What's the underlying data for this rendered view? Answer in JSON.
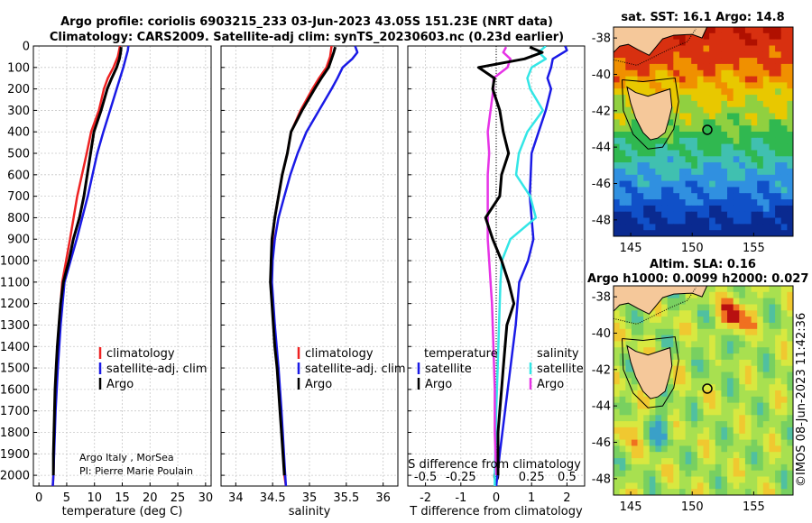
{
  "header": {
    "line1": "Argo profile: coriolis 6903215_233 03-Jun-2023 43.05S 151.23E (NRT data)",
    "line2": "Climatology: CARS2009. Satellite-adj clim: synTS_20230603.nc (0.23d earlier)"
  },
  "credit": {
    "operator": "Argo Italy , MorSea",
    "pi": "PI: Pierre Marie Poulain",
    "stamp": "©IMOS 08-Jun-2023 11:42:36"
  },
  "colors": {
    "climatology": "#ee2222",
    "satellite": "#1a1ae6",
    "argo": "#000000",
    "sat_salinity": "#33e6e6",
    "argo_salinity": "#e633e6",
    "land": "#f5c89a"
  },
  "chart_data": [
    {
      "type": "line",
      "id": "temperature_profile",
      "xlabel": "temperature (deg C)",
      "xlim": [
        -1,
        31
      ],
      "xticks": [
        0,
        5,
        10,
        15,
        20,
        25,
        30
      ],
      "ylim": [
        2050,
        0
      ],
      "yticks": [
        0,
        100,
        200,
        300,
        400,
        500,
        600,
        700,
        800,
        900,
        1000,
        1100,
        1200,
        1300,
        1400,
        1500,
        1600,
        1700,
        1800,
        1900,
        2000
      ],
      "legend": [
        "climatology",
        "satellite-adj. clim",
        "Argo"
      ],
      "series": [
        {
          "name": "climatology",
          "color": "#ee2222",
          "y": [
            0,
            50,
            100,
            150,
            200,
            300,
            400,
            500,
            700,
            900,
            1100,
            1300,
            1500,
            1700,
            2000,
            2050
          ],
          "x": [
            14.6,
            14.2,
            13.4,
            12.4,
            11.7,
            10.8,
            9.4,
            8.6,
            6.9,
            5.6,
            4.2,
            3.6,
            3.2,
            2.9,
            2.6,
            2.5
          ]
        },
        {
          "name": "satellite-adj. clim",
          "color": "#1a1ae6",
          "y": [
            0,
            20,
            60,
            100,
            150,
            200,
            300,
            400,
            500,
            700,
            900,
            1100,
            1300,
            1500,
            1700,
            2000,
            2050
          ],
          "x": [
            16.1,
            16.0,
            15.6,
            15.2,
            14.6,
            14.0,
            12.8,
            11.6,
            10.5,
            8.8,
            6.8,
            4.6,
            3.9,
            3.4,
            3.0,
            2.6,
            2.5
          ]
        },
        {
          "name": "Argo",
          "color": "#000000",
          "y": [
            5,
            30,
            60,
            100,
            150,
            200,
            300,
            400,
            500,
            600,
            700,
            800,
            900,
            1000,
            1100,
            1200,
            1300,
            1400,
            1500,
            1600,
            1700,
            1800,
            1900,
            2000
          ],
          "x": [
            14.8,
            14.7,
            14.5,
            14.0,
            13.1,
            12.3,
            11.2,
            9.9,
            9.3,
            8.7,
            8.1,
            7.3,
            6.2,
            5.4,
            4.4,
            3.9,
            3.6,
            3.3,
            3.1,
            2.9,
            2.8,
            2.7,
            2.6,
            2.6
          ]
        }
      ]
    },
    {
      "type": "line",
      "id": "salinity_profile",
      "xlabel": "salinity",
      "xlim": [
        33.8,
        36.2
      ],
      "xticks": [
        34,
        34.5,
        35,
        35.5,
        36
      ],
      "xticklabels": [
        "34",
        "34.5",
        "35",
        "35.5",
        "36"
      ],
      "ylim": [
        2050,
        0
      ],
      "legend": [
        "climatology",
        "satellite-adj. clim",
        "Argo"
      ],
      "series": [
        {
          "name": "climatology",
          "color": "#ee2222",
          "y": [
            0,
            50,
            100,
            150,
            200,
            300,
            400,
            500,
            600,
            700,
            800,
            900,
            1000,
            1100,
            1300,
            1500,
            1700,
            2000,
            2050
          ],
          "x": [
            35.3,
            35.28,
            35.23,
            35.13,
            35.04,
            34.88,
            34.75,
            34.7,
            34.63,
            34.58,
            34.53,
            34.5,
            34.49,
            34.48,
            34.52,
            34.57,
            34.61,
            34.66,
            34.68
          ]
        },
        {
          "name": "satellite-adj. clim",
          "color": "#1a1ae6",
          "y": [
            0,
            30,
            60,
            100,
            150,
            200,
            300,
            400,
            500,
            600,
            700,
            800,
            900,
            1000,
            1100,
            1300,
            1500,
            1700,
            2000,
            2050
          ],
          "x": [
            35.62,
            35.65,
            35.58,
            35.45,
            35.38,
            35.3,
            35.13,
            34.96,
            34.84,
            34.74,
            34.66,
            34.58,
            34.53,
            34.5,
            34.49,
            34.53,
            34.58,
            34.62,
            34.67,
            34.68
          ]
        },
        {
          "name": "Argo",
          "color": "#000000",
          "y": [
            5,
            30,
            60,
            100,
            150,
            200,
            300,
            400,
            500,
            600,
            700,
            800,
            900,
            1000,
            1100,
            1200,
            1300,
            1400,
            1500,
            1600,
            1700,
            1800,
            1900,
            2000
          ],
          "x": [
            35.35,
            35.33,
            35.3,
            35.26,
            35.16,
            35.07,
            34.9,
            34.75,
            34.7,
            34.63,
            34.58,
            34.53,
            34.49,
            34.48,
            34.47,
            34.49,
            34.51,
            34.53,
            34.56,
            34.58,
            34.6,
            34.62,
            34.64,
            34.66
          ]
        }
      ]
    },
    {
      "type": "line",
      "id": "difference_profile",
      "xlabel": "T difference from climatology",
      "xlabel2": "S difference from climatology",
      "xlim": [
        -2.5,
        2.5
      ],
      "xticks": [
        -2,
        -1,
        0,
        1,
        2
      ],
      "xticks2": [
        -0.5,
        -0.25,
        0,
        0.25,
        0.5
      ],
      "xticklabels2": [
        "-0.5",
        "-0.25",
        "0",
        "0.25",
        "0.5"
      ],
      "ylim": [
        2050,
        0
      ],
      "legend_temperature": {
        "title": "temperature",
        "items": [
          "satellite",
          "Argo"
        ]
      },
      "legend_salinity": {
        "title": "salinity",
        "items": [
          "satellite",
          "Argo"
        ]
      },
      "series": [
        {
          "name": "temperature satellite",
          "color": "#1a1ae6",
          "y": [
            0,
            20,
            60,
            100,
            150,
            200,
            300,
            400,
            500,
            700,
            900,
            1000,
            1100,
            1300,
            1500,
            1700,
            1900,
            2050
          ],
          "x": [
            1.95,
            2.0,
            1.6,
            1.55,
            1.45,
            1.55,
            1.4,
            1.2,
            1.0,
            0.95,
            1.05,
            0.9,
            0.65,
            0.55,
            0.4,
            0.25,
            0.1,
            0.0
          ]
        },
        {
          "name": "temperature Argo",
          "color": "#000000",
          "y": [
            5,
            30,
            60,
            100,
            150,
            200,
            300,
            400,
            500,
            600,
            700,
            800,
            900,
            1000,
            1100,
            1200,
            1300,
            1400,
            1500,
            1600,
            1700,
            1800,
            1900,
            2000
          ],
          "x": [
            0.95,
            1.3,
            0.8,
            -0.5,
            -0.05,
            -0.1,
            0.1,
            0.2,
            0.35,
            0.15,
            0.1,
            -0.3,
            -0.1,
            0.15,
            0.35,
            0.5,
            0.3,
            0.25,
            0.2,
            0.15,
            0.1,
            0.05,
            0.05,
            0.05
          ]
        },
        {
          "name": "salinity satellite",
          "color": "#33e6e6",
          "y": [
            0,
            30,
            60,
            100,
            150,
            200,
            300,
            400,
            500,
            600,
            700,
            800,
            900,
            1000,
            1100,
            1300,
            1500,
            1700,
            2000,
            2050
          ],
          "x": [
            0.35,
            0.3,
            0.35,
            0.25,
            0.22,
            0.24,
            0.33,
            0.22,
            0.16,
            0.14,
            0.24,
            0.28,
            0.1,
            0.04,
            0.03,
            0.02,
            0.01,
            0.0,
            -0.01,
            -0.01
          ]
        },
        {
          "name": "salinity Argo",
          "color": "#e633e6",
          "y": [
            5,
            30,
            60,
            100,
            150,
            200,
            300,
            400,
            500,
            600,
            700,
            800,
            900,
            1000,
            1100,
            1200,
            1400,
            1600,
            1800,
            2000
          ],
          "x": [
            0.07,
            0.05,
            0.1,
            0.08,
            -0.02,
            -0.02,
            -0.04,
            -0.06,
            -0.05,
            -0.06,
            -0.06,
            -0.06,
            -0.06,
            -0.05,
            -0.04,
            -0.03,
            -0.02,
            -0.01,
            -0.01,
            0.0
          ]
        }
      ]
    },
    {
      "type": "heatmap",
      "id": "sst_map",
      "title": "sat. SST: 16.1 Argo: 14.8",
      "xticks": [
        145,
        150,
        155
      ],
      "yticks": [
        -38,
        -40,
        -42,
        -44,
        -46,
        -48
      ],
      "xlim": [
        143.6,
        158.2
      ],
      "ylim": [
        -48.9,
        -37.4
      ],
      "argo_position": {
        "lon": 151.23,
        "lat": -43.05
      }
    },
    {
      "type": "heatmap",
      "id": "sla_map",
      "title": "Altim. SLA: 0.16",
      "subtitle": "Argo h1000: 0.0099 h2000: 0.027",
      "xticks": [
        145,
        150,
        155
      ],
      "yticks": [
        -38,
        -40,
        -42,
        -44,
        -46,
        -48
      ],
      "xlim": [
        143.6,
        158.2
      ],
      "ylim": [
        -48.9,
        -37.4
      ],
      "argo_position": {
        "lon": 151.23,
        "lat": -43.05
      }
    }
  ]
}
